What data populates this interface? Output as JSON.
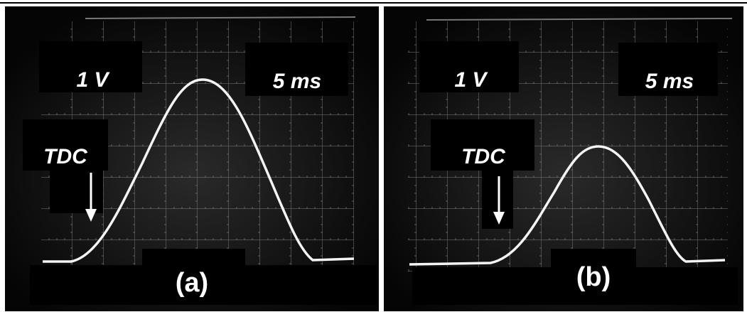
{
  "panels": [
    {
      "scale_volts": "1 V",
      "scale_time": "5 ms",
      "marker": "TDC",
      "label": "(a)"
    },
    {
      "scale_volts": "1 V",
      "scale_time": "5 ms",
      "marker": "TDC",
      "label": "(b)"
    }
  ]
}
